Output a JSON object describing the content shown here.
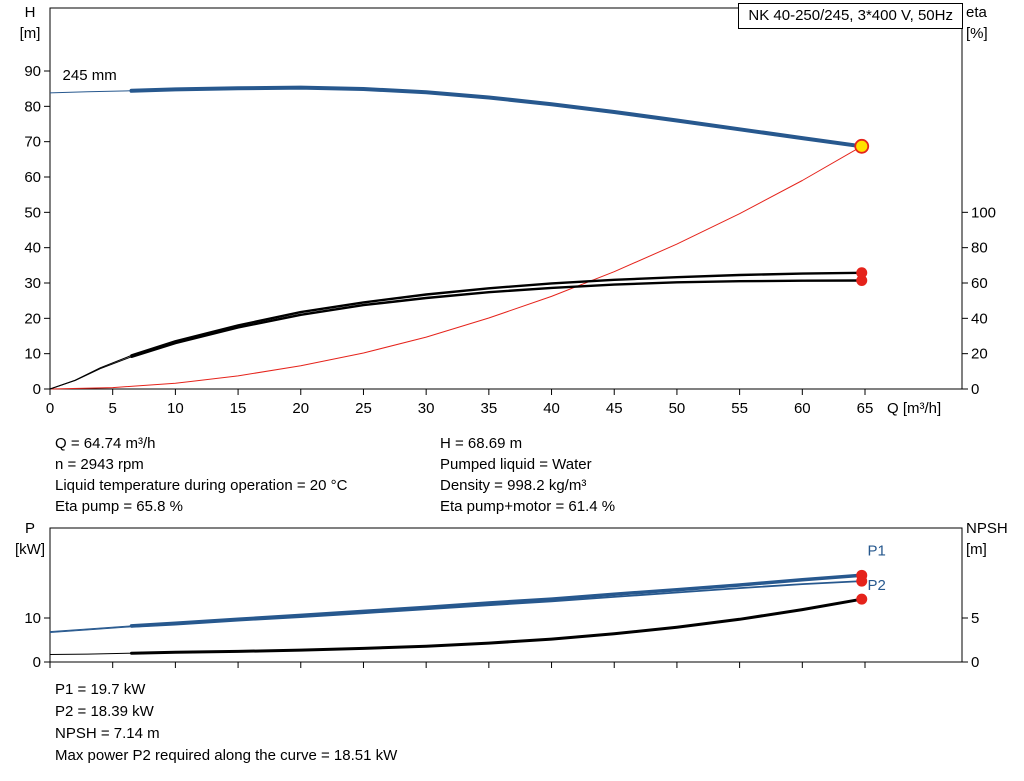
{
  "colors": {
    "curve_blue": "#27588e",
    "curve_black": "#000000",
    "curve_red": "#e5231b",
    "marker_yellow": "#ffe000",
    "background": "#ffffff"
  },
  "axis_corner_labels": {
    "top_left": [
      "H",
      "[m]"
    ],
    "top_right": [
      "eta",
      "[%]"
    ],
    "bottom_left": [
      "P",
      "[kW]"
    ],
    "bottom_right": [
      "NPSH",
      "[m]"
    ]
  },
  "info_top": {
    "left": [
      "Q = 64.74 m³/h",
      "n = 2943 rpm",
      "Liquid temperature during operation = 20 °C",
      "Eta pump = 65.8 %"
    ],
    "right": [
      "H = 68.69 m",
      "Pumped liquid = Water",
      "Density = 998.2 kg/m³",
      "Eta pump+motor = 61.4 %"
    ]
  },
  "info_bottom": [
    "P1 = 19.7 kW",
    "P2 = 18.39 kW",
    "NPSH = 7.14 m",
    "Max power P2 required along the curve = 18.51 kW"
  ],
  "chart_data": [
    {
      "name": "head-efficiency-chart",
      "type": "line",
      "title": "NK 40-250/245, 3*400 V, 50Hz",
      "x_axis": {
        "label": "Q [m³/h]",
        "min": 0,
        "max": 72.7,
        "ticks": [
          0,
          5,
          10,
          15,
          20,
          25,
          30,
          35,
          40,
          45,
          50,
          55,
          60,
          65
        ]
      },
      "y_left": {
        "label": "H [m]",
        "min": 0,
        "max": 107.8,
        "ticks": [
          0,
          10,
          20,
          30,
          40,
          50,
          60,
          70,
          80,
          90
        ]
      },
      "y_right": {
        "label": "eta [%]",
        "min": 0,
        "max": 215.7,
        "ticks": [
          0,
          20,
          40,
          60,
          80,
          100
        ]
      },
      "series": [
        {
          "name": "system-curve",
          "axis": "left",
          "color": "#e5231b",
          "width": 1,
          "x": [
            0,
            5,
            10,
            15,
            20,
            25,
            30,
            35,
            40,
            45,
            50,
            55,
            60,
            64.74
          ],
          "y": [
            0,
            0.4,
            1.6,
            3.7,
            6.6,
            10.2,
            14.7,
            20.1,
            26.2,
            33.2,
            41,
            49.6,
            59,
            68.69
          ]
        },
        {
          "name": "eta-pump-motor-curve",
          "axis": "right",
          "color": "#000000",
          "width": 2.4,
          "thin_until": 6.5,
          "x": [
            0,
            2,
            4,
            6.5,
            10,
            15,
            20,
            25,
            30,
            35,
            40,
            45,
            50,
            55,
            60,
            64.74
          ],
          "y": [
            0,
            4.8,
            11.5,
            18.2,
            26,
            34.8,
            42,
            47.5,
            51.5,
            54.8,
            57.2,
            59.1,
            60.4,
            61,
            61.3,
            61.4
          ]
        },
        {
          "name": "eta-pump-curve",
          "axis": "right",
          "color": "#000000",
          "width": 2.4,
          "thin_until": 6.5,
          "x": [
            0,
            2,
            4,
            6.5,
            10,
            15,
            20,
            25,
            30,
            35,
            40,
            45,
            50,
            55,
            60,
            64.74
          ],
          "y": [
            0,
            5,
            12,
            19,
            27,
            36,
            43.5,
            49,
            53.5,
            57,
            59.8,
            61.8,
            63.3,
            64.5,
            65.3,
            65.8
          ]
        },
        {
          "name": "head-curve-245mm",
          "axis": "left",
          "color": "#27588e",
          "width": 4,
          "thin_until": 6.5,
          "x": [
            0,
            3,
            6.5,
            10,
            15,
            20,
            25,
            30,
            35,
            40,
            45,
            50,
            55,
            60,
            64.74
          ],
          "y": [
            83.8,
            84.1,
            84.4,
            84.8,
            85.1,
            85.3,
            84.9,
            84,
            82.5,
            80.6,
            78.4,
            76,
            73.5,
            71,
            68.69
          ]
        }
      ],
      "markers": [
        {
          "name": "eta-pump-motor-point",
          "x": 64.74,
          "y": 61.4,
          "axis": "right",
          "fill": "#e5231b",
          "r": 5.5
        },
        {
          "name": "eta-pump-point",
          "x": 64.74,
          "y": 65.8,
          "axis": "right",
          "fill": "#e5231b",
          "r": 5.5
        },
        {
          "name": "duty-point",
          "x": 64.74,
          "y": 68.69,
          "axis": "left",
          "fill": "#ffe000",
          "stroke": "#e5231b",
          "r": 6.5
        }
      ],
      "point_labels": [
        {
          "text": "245 mm",
          "x": 1,
          "y": 87.5,
          "axis": "left",
          "color": "#000000"
        }
      ]
    },
    {
      "name": "power-npsh-chart",
      "type": "line",
      "title": "",
      "x_axis": {
        "label": "",
        "min": 0,
        "max": 72.7,
        "ticks": [
          0,
          5,
          10,
          15,
          20,
          25,
          30,
          35,
          40,
          45,
          50,
          55,
          60,
          65
        ]
      },
      "y_left": {
        "label": "P [kW]",
        "min": 0,
        "max": 30.5,
        "ticks": [
          0,
          10
        ]
      },
      "y_right": {
        "label": "NPSH [m]",
        "min": 0,
        "max": 15.2,
        "ticks": [
          0,
          5
        ]
      },
      "series": [
        {
          "name": "npsh-curve",
          "axis": "right",
          "color": "#000000",
          "width": 3,
          "thin_until": 6.5,
          "x": [
            0,
            3,
            6.5,
            10,
            15,
            20,
            25,
            30,
            35,
            40,
            45,
            50,
            55,
            60,
            64.74
          ],
          "y": [
            0.85,
            0.9,
            1,
            1.1,
            1.2,
            1.35,
            1.55,
            1.8,
            2.15,
            2.6,
            3.2,
            3.95,
            4.85,
            5.95,
            7.14
          ]
        },
        {
          "name": "p2-curve",
          "axis": "left",
          "color": "#27588e",
          "width": 1.8,
          "thin_until": 6.5,
          "x": [
            0,
            3,
            6.5,
            10,
            15,
            20,
            25,
            30,
            35,
            40,
            45,
            50,
            55,
            60,
            64.74
          ],
          "y": [
            6.7,
            7.3,
            8,
            8.5,
            9.4,
            10.2,
            11.1,
            12,
            12.9,
            13.8,
            14.8,
            15.8,
            16.8,
            17.7,
            18.39
          ]
        },
        {
          "name": "p1-curve",
          "axis": "left",
          "color": "#27588e",
          "width": 3.5,
          "thin_until": 6.5,
          "x": [
            0,
            3,
            6.5,
            10,
            15,
            20,
            25,
            30,
            35,
            40,
            45,
            50,
            55,
            60,
            64.74
          ],
          "y": [
            6.9,
            7.5,
            8.2,
            8.8,
            9.7,
            10.6,
            11.5,
            12.4,
            13.4,
            14.3,
            15.4,
            16.4,
            17.5,
            18.7,
            19.7
          ]
        }
      ],
      "markers": [
        {
          "name": "p1-point",
          "x": 64.74,
          "y": 19.7,
          "axis": "left",
          "fill": "#e5231b",
          "r": 5.5
        },
        {
          "name": "p2-point",
          "x": 64.74,
          "y": 18.39,
          "axis": "left",
          "fill": "#e5231b",
          "r": 5.5
        },
        {
          "name": "npsh-point",
          "x": 64.74,
          "y": 7.14,
          "axis": "right",
          "fill": "#e5231b",
          "r": 5.5
        }
      ],
      "point_labels": [
        {
          "text": "P1",
          "x": 65.2,
          "y": 24.2,
          "axis": "left",
          "color": "#27588e"
        },
        {
          "text": "P2",
          "x": 65.2,
          "y": 16.4,
          "axis": "left",
          "color": "#27588e"
        }
      ]
    }
  ]
}
